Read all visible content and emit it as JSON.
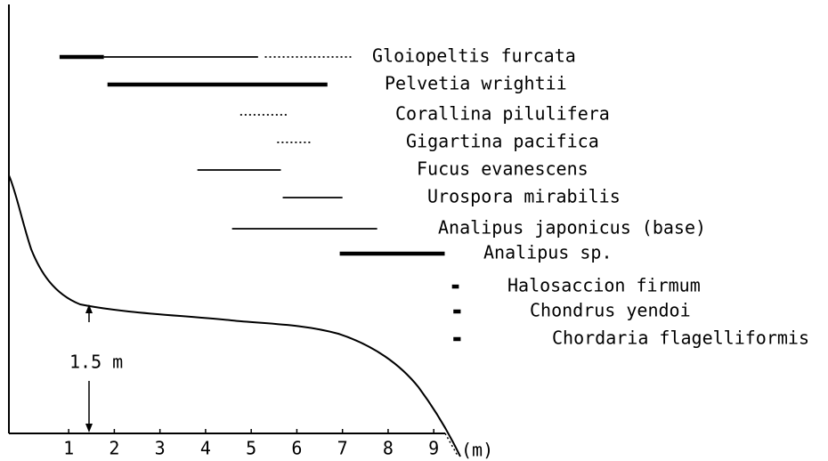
{
  "chart_data": {
    "type": "range",
    "xlim": [
      -0.31,
      9.25
    ],
    "xticks": [
      1,
      2,
      3,
      4,
      5,
      6,
      7,
      8,
      9
    ],
    "xlabel": "(m)",
    "annotation": "1.5 m",
    "series": [
      {
        "name": "Gloiopeltis furcata",
        "segments": [
          {
            "from": 0.8,
            "to": 1.77,
            "style": "thick"
          },
          {
            "from": 1.77,
            "to": 5.15,
            "style": "thin"
          },
          {
            "from": 5.3,
            "to": 7.19,
            "style": "dotted"
          }
        ]
      },
      {
        "name": "Pelvetia wrightii",
        "segments": [
          {
            "from": 1.85,
            "to": 6.67,
            "style": "thick"
          }
        ]
      },
      {
        "name": "Corallina pilulifera",
        "segments": [
          {
            "from": 4.76,
            "to": 5.83,
            "style": "dotted"
          }
        ]
      },
      {
        "name": "Gigartina pacifica",
        "segments": [
          {
            "from": 5.57,
            "to": 6.35,
            "style": "dotted"
          }
        ]
      },
      {
        "name": "Fucus evanescens",
        "segments": [
          {
            "from": 3.82,
            "to": 5.65,
            "style": "thin"
          }
        ]
      },
      {
        "name": "Urospora mirabilis",
        "segments": [
          {
            "from": 5.69,
            "to": 7.0,
            "style": "thin"
          }
        ]
      },
      {
        "name": "Analipus japonicus (base)",
        "segments": [
          {
            "from": 4.58,
            "to": 7.76,
            "style": "thin"
          }
        ]
      },
      {
        "name": "Analipus sp.",
        "segments": [
          {
            "from": 6.94,
            "to": 9.24,
            "style": "thick"
          }
        ]
      },
      {
        "name": "Halosaccion firmum",
        "segments": [
          {
            "from": 9.4,
            "to": 9.55,
            "style": "thick"
          }
        ]
      },
      {
        "name": "Chondrus yendoi",
        "segments": [
          {
            "from": 9.43,
            "to": 9.59,
            "style": "thick"
          }
        ]
      },
      {
        "name": "Chordaria flagelliformis",
        "segments": [
          {
            "from": 9.43,
            "to": 9.59,
            "style": "thick"
          }
        ]
      }
    ]
  }
}
